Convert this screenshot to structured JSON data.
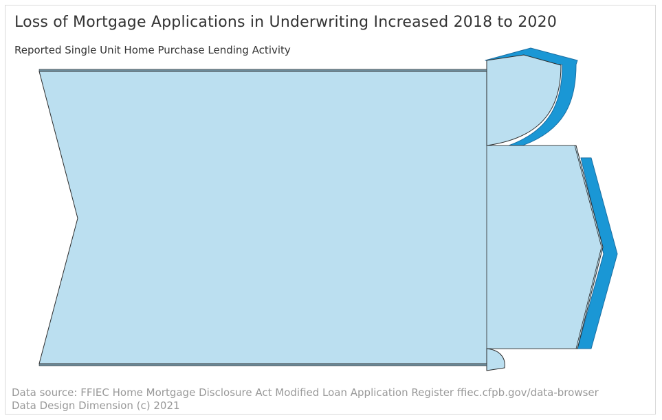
{
  "header": {
    "title": "Loss of Mortgage Applications in Underwriting Increased 2018 to 2020",
    "subtitle": "Reported Single Unit Home Purchase Lending Activity"
  },
  "footer": {
    "source": "Data source: FFIEC Home Mortgage Disclosure Act Modified Loan Application Register ffiec.cfpb.gov/data-browser",
    "credit": "Data Design Dimension (c) 2021"
  },
  "colors": {
    "flow_fill": "#bbdff0",
    "outline": "#2b2b2b",
    "shadow": "#1a97d5",
    "shadow_stroke": "#1a6fa3"
  },
  "chart_data": {
    "type": "sankey",
    "title": "Loss of Mortgage Applications in Underwriting Increased 2018 to 2020",
    "subtitle": "Reported Single Unit Home Purchase Lending Activity",
    "flows": [
      {
        "id": "main",
        "share": 1.0
      },
      {
        "id": "top-branch",
        "share": 0.25
      },
      {
        "id": "middle-branch",
        "share": 0.69
      },
      {
        "id": "bottom-branch",
        "share": 0.06
      }
    ]
  }
}
